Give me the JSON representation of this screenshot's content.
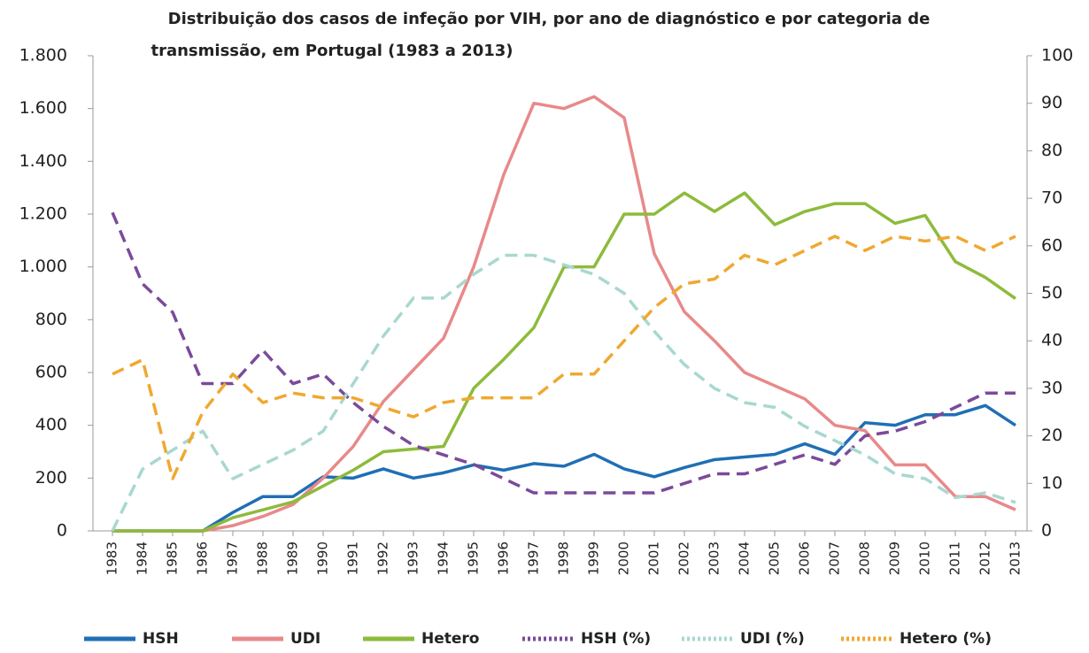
{
  "chart_data": {
    "type": "line",
    "title_lines": [
      "Distribuição dos casos de infeção por VIH, por ano de diagnóstico e por categoria de",
      "transmissão,  em Portugal (1983 a 2013)"
    ],
    "categories": [
      "1983",
      "1984",
      "1985",
      "1986",
      "1987",
      "1988",
      "1989",
      "1990",
      "1991",
      "1992",
      "1993",
      "1994",
      "1995",
      "1996",
      "1997",
      "1998",
      "1999",
      "2000",
      "2001",
      "2002",
      "2003",
      "2004",
      "2005",
      "2006",
      "2007",
      "2008",
      "2009",
      "2010",
      "2011",
      "2012",
      "2013"
    ],
    "ylim": [
      0,
      1800
    ],
    "yticks": [
      0,
      200,
      400,
      600,
      800,
      {
        "value": 1000,
        "label": "1.000"
      },
      {
        "value": 1200,
        "label": "1.200"
      },
      {
        "value": 1400,
        "label": "1.400"
      },
      {
        "value": 1600,
        "label": "1.600"
      },
      {
        "value": 1800,
        "label": "1.800"
      }
    ],
    "y2lim": [
      0,
      100
    ],
    "y2ticks": [
      0,
      10,
      20,
      30,
      40,
      50,
      60,
      70,
      80,
      90,
      100
    ],
    "legend": "bottom",
    "series": [
      {
        "name": "HSH",
        "color": "#1f6fb5",
        "dashed": false,
        "values": [
          0,
          0,
          0,
          0,
          70,
          130,
          130,
          205,
          200,
          235,
          200,
          220,
          250,
          230,
          255,
          245,
          290,
          235,
          205,
          240,
          270,
          280,
          290,
          330,
          290,
          410,
          400,
          440,
          440,
          475,
          400
        ]
      },
      {
        "name": "UDI",
        "color": "#e8898a",
        "dashed": false,
        "values": [
          0,
          0,
          0,
          0,
          20,
          55,
          100,
          200,
          320,
          490,
          610,
          730,
          1000,
          1350,
          1620,
          1600,
          1645,
          1565,
          1050,
          830,
          720,
          600,
          550,
          500,
          400,
          380,
          250,
          250,
          130,
          130,
          80
        ]
      },
      {
        "name": "Hetero",
        "color": "#8dbb3c",
        "dashed": false,
        "values": [
          0,
          0,
          0,
          0,
          50,
          80,
          110,
          170,
          230,
          300,
          310,
          320,
          540,
          650,
          770,
          1000,
          1000,
          1200,
          1200,
          1280,
          1210,
          1280,
          1160,
          1210,
          1240,
          1240,
          1165,
          1195,
          1020,
          960,
          880
        ]
      },
      {
        "name": "HSH (%)",
        "color": "#7b4a9a",
        "dashed": true,
        "axis": "y2",
        "values": [
          67,
          52,
          46,
          31,
          31,
          38,
          31,
          33,
          27,
          22,
          18,
          16,
          14,
          11,
          8,
          8,
          8,
          8,
          8,
          10,
          12,
          12,
          14,
          16,
          14,
          20,
          21,
          23,
          26,
          29,
          29
        ]
      },
      {
        "name": "UDI (%)",
        "color": "#a8d8d0",
        "dashed": true,
        "axis": "y2",
        "values": [
          0,
          13,
          17,
          21,
          11,
          14,
          17,
          21,
          31,
          41,
          49,
          49,
          54,
          58,
          58,
          56,
          54,
          50,
          42,
          35,
          30,
          27,
          26,
          22,
          19,
          16,
          12,
          11,
          7,
          8,
          6
        ]
      },
      {
        "name": "Hetero (%)",
        "color": "#f0a830",
        "dashed": true,
        "axis": "y2",
        "values": [
          33,
          36,
          11,
          25,
          33,
          27,
          29,
          28,
          28,
          26,
          24,
          27,
          28,
          28,
          28,
          33,
          33,
          40,
          47,
          52,
          53,
          58,
          56,
          59,
          62,
          59,
          62,
          61,
          62,
          59,
          62
        ]
      }
    ]
  }
}
